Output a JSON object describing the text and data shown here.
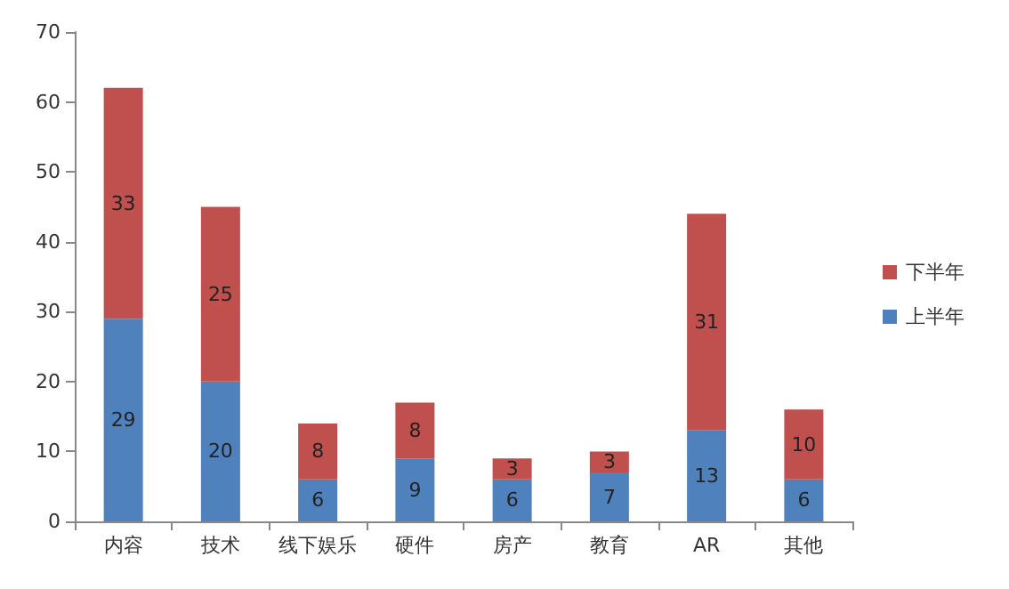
{
  "chart_data": {
    "type": "bar",
    "stacked": true,
    "categories": [
      "内容",
      "技术",
      "线下娱乐",
      "硬件",
      "房产",
      "教育",
      "AR",
      "其他"
    ],
    "series": [
      {
        "name": "上半年",
        "color": "#4f81bd",
        "values": [
          29,
          20,
          6,
          9,
          6,
          7,
          13,
          6
        ]
      },
      {
        "name": "下半年",
        "color": "#c0504d",
        "values": [
          33,
          25,
          8,
          8,
          3,
          3,
          31,
          10
        ]
      }
    ],
    "ylim": [
      0,
      70
    ],
    "yticks": [
      0,
      10,
      20,
      30,
      40,
      50,
      60,
      70
    ],
    "grid": false,
    "legend": "right",
    "data_labels": true
  }
}
